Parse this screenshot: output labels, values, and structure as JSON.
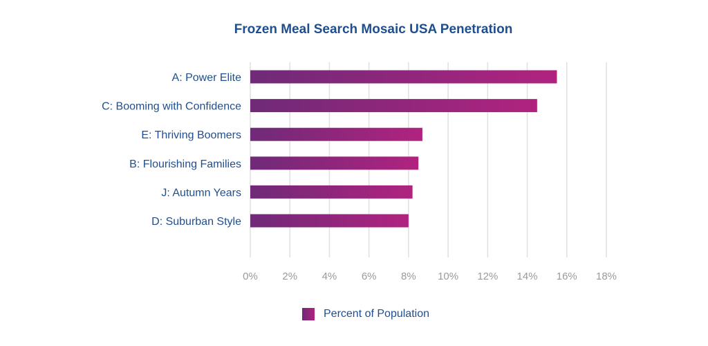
{
  "chart_data": {
    "type": "bar",
    "orientation": "horizontal",
    "title": "Frozen Meal Search Mosaic USA Penetration",
    "categories": [
      "A: Power Elite",
      "C: Booming with Confidence",
      "E: Thriving Boomers",
      "B: Flourishing Families",
      "J: Autumn Years",
      "D: Suburban Style"
    ],
    "series": [
      {
        "name": "Percent of Population",
        "values": [
          15.5,
          14.5,
          8.7,
          8.5,
          8.2,
          8.0
        ]
      }
    ],
    "xlim": [
      0,
      18
    ],
    "xticks": [
      0,
      2,
      4,
      6,
      8,
      10,
      12,
      14,
      16,
      18
    ],
    "xtick_labels": [
      "0%",
      "2%",
      "4%",
      "6%",
      "8%",
      "10%",
      "12%",
      "14%",
      "16%",
      "18%"
    ],
    "xlabel": "",
    "ylabel": "",
    "grid": true,
    "legend": "bottom-center",
    "colors": {
      "gradient_start": "#6f2a78",
      "gradient_end": "#b0237f",
      "text": "#1f4e8f",
      "grid": "#e0e0e0"
    }
  }
}
